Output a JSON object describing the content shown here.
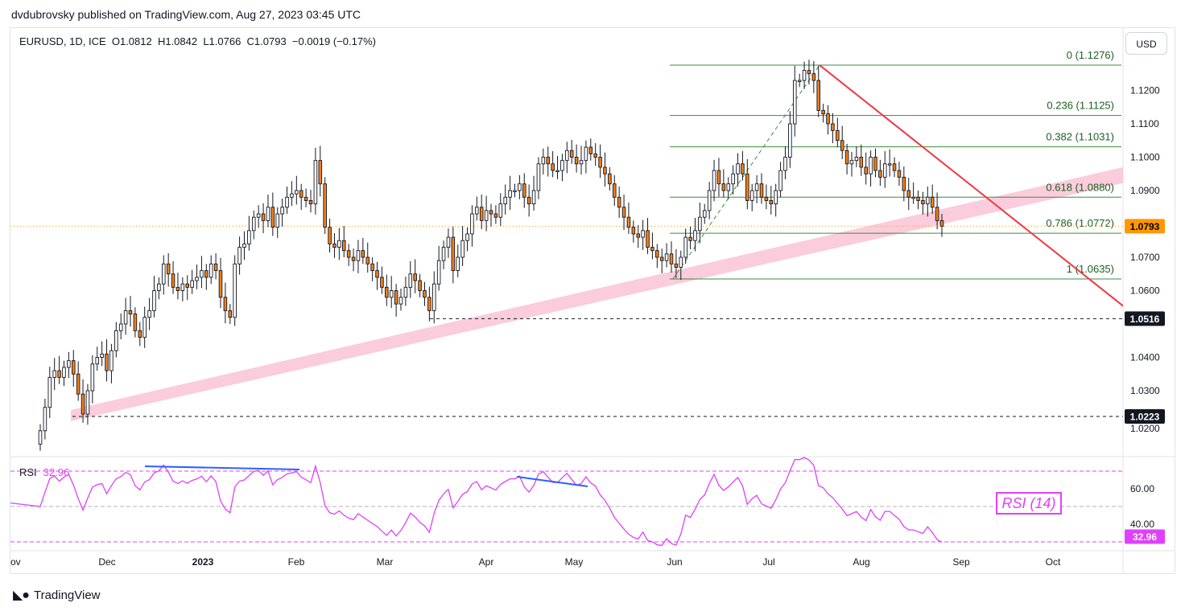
{
  "header": {
    "publisher": "dvdubrovsky published on TradingView.com, Aug 27, 2023 03:45 UTC"
  },
  "legend": {
    "text": "EURUSD, 1D, ICE  O1.0812  H1.0842  L1.0766  C1.0793  −0.0019 (−0.17%)"
  },
  "currency_button": "USD",
  "brand": {
    "label": "TradingView",
    "logo_icon": "tradingview-logo-icon"
  },
  "rsi": {
    "label": "RSI",
    "value": "32.96",
    "box_label": "RSI (14)",
    "color": "#e040fb"
  },
  "chart_data": {
    "type": "candlestick",
    "symbol": "EURUSD",
    "interval": "1D",
    "ylim": [
      1.015,
      1.132
    ],
    "y_ticks": [
      "1.0300",
      "1.0400",
      "1.0600",
      "1.0700",
      "1.0900",
      "1.1000",
      "1.1100",
      "1.1200"
    ],
    "x_ticks": [
      "ov",
      "Dec",
      "2023",
      "Feb",
      "Mar",
      "Apr",
      "May",
      "Jun",
      "Jul",
      "Aug",
      "Sep",
      "Oct"
    ],
    "current_price": "1.0793",
    "horizontal_levels": [
      {
        "price": 1.0516,
        "label": "1.0516"
      },
      {
        "price": 1.0223,
        "label": "1.0223"
      }
    ],
    "fibonacci": [
      {
        "ratio": 0,
        "price": 1.1276,
        "label": "0 (1.1276)"
      },
      {
        "ratio": 0.236,
        "price": 1.1125,
        "label": "0.236 (1.1125)"
      },
      {
        "ratio": 0.382,
        "price": 1.1031,
        "label": "0.382 (1.1031)"
      },
      {
        "ratio": 0.618,
        "price": 1.088,
        "label": "0.618 (1.0880)"
      },
      {
        "ratio": 0.786,
        "price": 1.0772,
        "label": "0.786 (1.0772)"
      },
      {
        "ratio": 1,
        "price": 1.0635,
        "label": "1 (1.0635)"
      }
    ],
    "rsi_ticks": [
      "60.00",
      "40.00"
    ],
    "colors": {
      "up_body": "#ffffff",
      "down_body": "#f57f17",
      "wick": "#131722",
      "fib": "#388e3c",
      "trend": "#f23645",
      "band": "#f8bbd0",
      "rsi": "#e040fb",
      "divergence": "#2962ff"
    },
    "closes": [
      1.018,
      1.025,
      1.034,
      1.036,
      1.034,
      1.037,
      1.039,
      1.035,
      1.029,
      1.023,
      1.03,
      1.038,
      1.04,
      1.041,
      1.036,
      1.042,
      1.048,
      1.05,
      1.054,
      1.053,
      1.048,
      1.046,
      1.052,
      1.054,
      1.06,
      1.062,
      1.068,
      1.065,
      1.061,
      1.06,
      1.062,
      1.061,
      1.063,
      1.064,
      1.066,
      1.064,
      1.068,
      1.066,
      1.058,
      1.054,
      1.052,
      1.068,
      1.073,
      1.074,
      1.078,
      1.082,
      1.083,
      1.081,
      1.085,
      1.079,
      1.083,
      1.085,
      1.088,
      1.089,
      1.09,
      1.088,
      1.087,
      1.086,
      1.099,
      1.092,
      1.079,
      1.074,
      1.073,
      1.075,
      1.072,
      1.07,
      1.069,
      1.072,
      1.07,
      1.068,
      1.066,
      1.064,
      1.061,
      1.058,
      1.06,
      1.056,
      1.058,
      1.061,
      1.065,
      1.063,
      1.06,
      1.058,
      1.054,
      1.062,
      1.069,
      1.073,
      1.076,
      1.066,
      1.07,
      1.075,
      1.077,
      1.083,
      1.085,
      1.081,
      1.084,
      1.083,
      1.082,
      1.086,
      1.088,
      1.09,
      1.09,
      1.092,
      1.088,
      1.086,
      1.09,
      1.098,
      1.1,
      1.098,
      1.096,
      1.096,
      1.099,
      1.102,
      1.1,
      1.098,
      1.099,
      1.103,
      1.101,
      1.1,
      1.097,
      1.095,
      1.092,
      1.088,
      1.085,
      1.082,
      1.079,
      1.077,
      1.076,
      1.078,
      1.073,
      1.072,
      1.07,
      1.069,
      1.071,
      1.068,
      1.067,
      1.07,
      1.076,
      1.075,
      1.078,
      1.082,
      1.084,
      1.09,
      1.096,
      1.092,
      1.09,
      1.092,
      1.095,
      1.098,
      1.095,
      1.087,
      1.09,
      1.092,
      1.088,
      1.087,
      1.086,
      1.09,
      1.096,
      1.1,
      1.11,
      1.123,
      1.123,
      1.126,
      1.125,
      1.123,
      1.114,
      1.113,
      1.11,
      1.108,
      1.105,
      1.102,
      1.098,
      1.099,
      1.1,
      1.097,
      1.095,
      1.1,
      1.096,
      1.094,
      1.098,
      1.098,
      1.096,
      1.094,
      1.09,
      1.088,
      1.088,
      1.087,
      1.086,
      1.088,
      1.085,
      1.081,
      1.0793
    ]
  }
}
